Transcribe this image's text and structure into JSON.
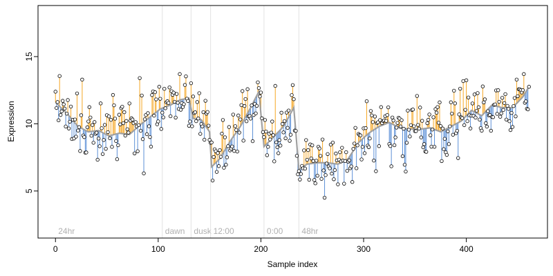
{
  "chart_data": {
    "type": "scatter",
    "title": "",
    "xlabel": "Sample index",
    "ylabel": "Expression",
    "xlim": [
      -17,
      479
    ],
    "ylim": [
      1.5,
      18.8
    ],
    "xticks": [
      0,
      100,
      200,
      300,
      400
    ],
    "yticks": [
      5,
      10,
      15
    ],
    "grid": false,
    "colors": {
      "points_fill": "#ffffff",
      "points_stroke": "#000000",
      "fit_line": "#a0a0a0",
      "residual_positive": "#f5a623",
      "residual_negative": "#5b8fd6",
      "markers": "#e2e2e2",
      "marker_text": "#b0b0b0"
    },
    "markers": [
      {
        "x": 0,
        "label": "24hr"
      },
      {
        "x": 104,
        "label": "dawn"
      },
      {
        "x": 132,
        "label": "dusk"
      },
      {
        "x": 151,
        "label": "12:00"
      },
      {
        "x": 203,
        "label": "0:00"
      },
      {
        "x": 237,
        "label": "48hr"
      }
    ],
    "fit_knots": [
      [
        0,
        11.6
      ],
      [
        12,
        10.7
      ],
      [
        22,
        9.8
      ],
      [
        32,
        9.4
      ],
      [
        42,
        9.5
      ],
      [
        52,
        9.1
      ],
      [
        62,
        9.3
      ],
      [
        72,
        9.2
      ],
      [
        82,
        9.9
      ],
      [
        92,
        10.5
      ],
      [
        102,
        11.1
      ],
      [
        112,
        11.4
      ],
      [
        122,
        11.8
      ],
      [
        130,
        11.9
      ],
      [
        134,
        10.4
      ],
      [
        142,
        10.3
      ],
      [
        150,
        9.4
      ],
      [
        152,
        6.8
      ],
      [
        160,
        7.4
      ],
      [
        170,
        8.7
      ],
      [
        180,
        9.8
      ],
      [
        190,
        11.2
      ],
      [
        198,
        12.4
      ],
      [
        203,
        8.3
      ],
      [
        212,
        9.0
      ],
      [
        222,
        9.8
      ],
      [
        232,
        11.2
      ],
      [
        237,
        6.6
      ],
      [
        245,
        7.0
      ],
      [
        255,
        7.1
      ],
      [
        265,
        7.1
      ],
      [
        275,
        7.0
      ],
      [
        285,
        7.4
      ],
      [
        295,
        8.6
      ],
      [
        305,
        9.3
      ],
      [
        315,
        9.8
      ],
      [
        325,
        10.1
      ],
      [
        335,
        9.7
      ],
      [
        345,
        9.6
      ],
      [
        355,
        9.6
      ],
      [
        365,
        9.7
      ],
      [
        375,
        9.4
      ],
      [
        385,
        9.8
      ],
      [
        395,
        10.2
      ],
      [
        405,
        11.0
      ],
      [
        415,
        10.6
      ],
      [
        425,
        11.4
      ],
      [
        435,
        11.2
      ],
      [
        445,
        11.2
      ],
      [
        455,
        12.0
      ],
      [
        462,
        12.9
      ]
    ],
    "n_points": 462,
    "sample_noise_sd": 1.25,
    "seed": 17
  }
}
